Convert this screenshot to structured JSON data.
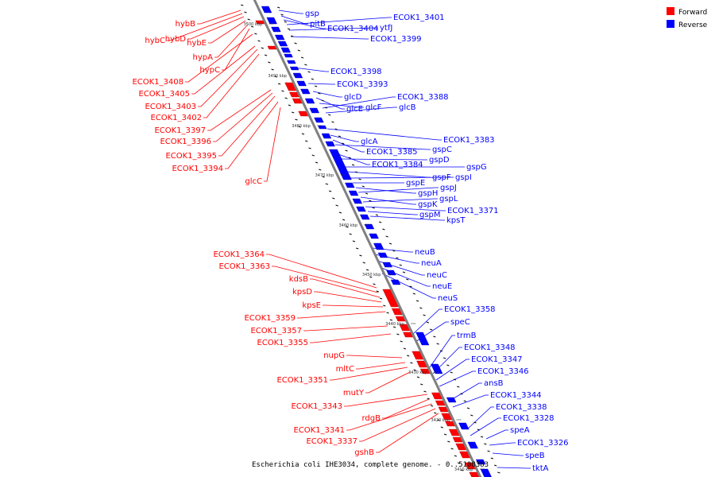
{
  "caption": "Escherichia coli IHE3034, complete genome. - 0..5108383",
  "legend": [
    {
      "label": "Forward",
      "color": "#ff0000"
    },
    {
      "label": "Reverse",
      "color": "#0000ff"
    }
  ],
  "colors": {
    "forward": "#ff0000",
    "reverse": "#0000ff",
    "backbone": "#808080"
  },
  "ticks": [
    "3500 kbp",
    "3490 kbp",
    "3480 kbp",
    "3470 kbp",
    "3460 kbp",
    "3450 kbp",
    "3440 kbp",
    "3430 kbp",
    "3420 kbp",
    "3410 kbp"
  ],
  "genes": {
    "forward": [
      "hybB",
      "hybC",
      "hybD",
      "hybE",
      "hypA",
      "hypC",
      "ECOK1_3408",
      "ECOK1_3405",
      "ECOK1_3403",
      "ECOK1_3402",
      "ECOK1_3397",
      "ECOK1_3396",
      "ECOK1_3395",
      "ECOK1_3394",
      "glcC",
      "ECOK1_3364",
      "ECOK1_3363",
      "kdsB",
      "kpsD",
      "kpsE",
      "ECOK1_3359",
      "ECOK1_3357",
      "ECOK1_3355",
      "nupG",
      "mltC",
      "ECOK1_3351",
      "mutY",
      "ECOK1_3343",
      "rdgB",
      "ECOK1_3341",
      "ECOK1_3337",
      "gshB"
    ],
    "reverse": [
      "gsp",
      "pitB",
      "ECOK1_3404",
      "ECOK1_3401",
      "ytfJ",
      "ECOK1_3399",
      "ECOK1_3398",
      "ECOK1_3393",
      "glcD",
      "glcE",
      "glcF",
      "ECOK1_3388",
      "glcB",
      "ECOK1_3383",
      "glcA",
      "ECOK1_3385",
      "gspC",
      "ECOK1_3384",
      "gspD",
      "gspG",
      "gspF",
      "gspI",
      "gspE",
      "gspH",
      "gspJ",
      "gspK",
      "gspL",
      "ECOK1_3371",
      "gspM",
      "kpsT",
      "neuB",
      "neuA",
      "neuC",
      "neuE",
      "neuS",
      "ECOK1_3358",
      "speC",
      "trmB",
      "ECOK1_3348",
      "ECOK1_3347",
      "ECOK1_3346",
      "ansB",
      "ECOK1_3344",
      "ECOK1_3338",
      "ECOK1_3328",
      "speA",
      "ECOK1_3326",
      "speB",
      "tktA"
    ]
  }
}
